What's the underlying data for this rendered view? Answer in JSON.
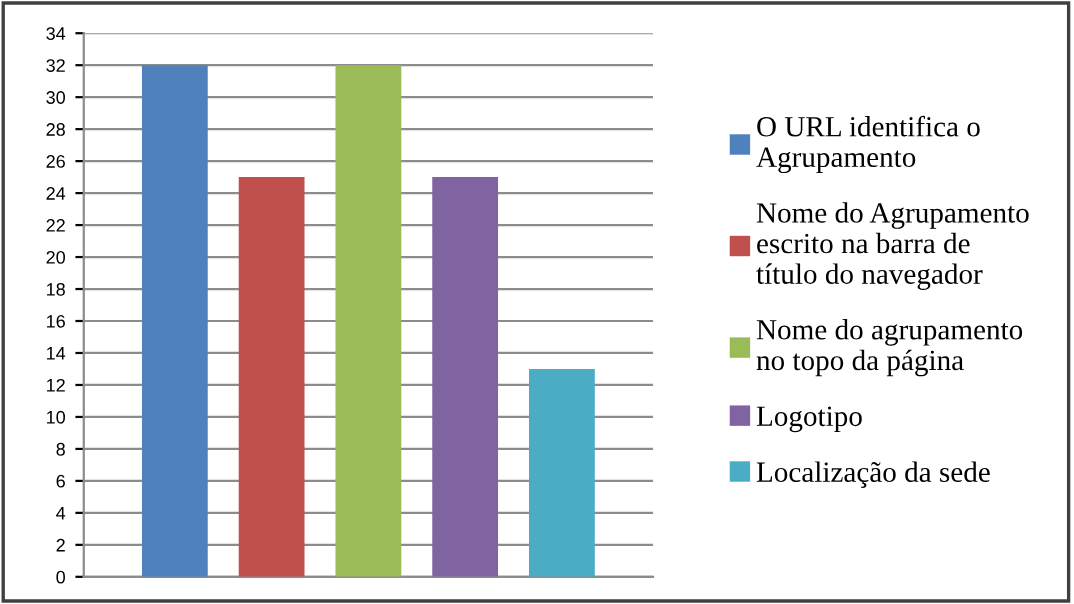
{
  "chart_data": {
    "type": "bar",
    "categories": [
      null
    ],
    "series": [
      {
        "name": "O URL identifica o\nAgrupamento",
        "color": "#4f81bd",
        "values": [
          32
        ]
      },
      {
        "name": "Nome do Agrupamento\nescrito na barra de\ntítulo do navegador",
        "color": "#c0504d",
        "values": [
          25
        ]
      },
      {
        "name": "Nome do agrupamento\nno topo da página",
        "color": "#9bbb59",
        "values": [
          32
        ]
      },
      {
        "name": "Logotipo",
        "color": "#8064a2",
        "values": [
          25
        ]
      },
      {
        "name": "Localização da sede",
        "color": "#4bacc6",
        "values": [
          13
        ]
      }
    ],
    "ylim": [
      0,
      34
    ],
    "yticks": [
      0,
      2,
      4,
      6,
      8,
      10,
      12,
      14,
      16,
      18,
      20,
      22,
      24,
      26,
      28,
      30,
      32,
      34
    ],
    "grid": "y",
    "legend": "right"
  }
}
